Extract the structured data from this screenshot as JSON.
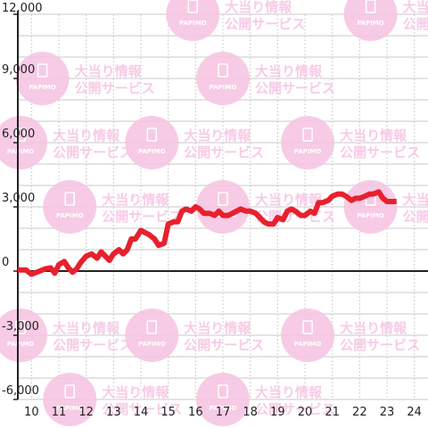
{
  "watermark": {
    "logo_text": "PAPIMO",
    "line1": "大当り情報",
    "line2": "公開サービス",
    "color": "#f7c6e3"
  },
  "chart_data": {
    "type": "line",
    "title": "",
    "xlabel": "",
    "ylabel": "",
    "xlim": [
      9.5,
      24.5
    ],
    "ylim": [
      -6000,
      12000
    ],
    "x_ticks": [
      10,
      11,
      12,
      13,
      14,
      15,
      16,
      17,
      18,
      19,
      20,
      21,
      22,
      23,
      24
    ],
    "x_tick_labels": [
      "10",
      "11",
      "12",
      "13",
      "14",
      "15",
      "16",
      "17",
      "18",
      "19",
      "20",
      "21",
      "22",
      "23",
      "24"
    ],
    "y_ticks": [
      -6000,
      -3000,
      0,
      3000,
      6000,
      9000,
      12000
    ],
    "y_tick_labels": [
      "-6,000",
      "-3,000",
      "0",
      "3,000",
      "6,000",
      "9,000",
      "12,000"
    ],
    "grid": true,
    "line_color": "#e8202e",
    "series": [
      {
        "x": [
          9.5,
          9.8,
          10.0,
          10.3,
          10.5,
          10.7,
          10.85,
          11.0,
          11.2,
          11.35,
          11.5,
          11.65,
          11.8,
          12.0,
          12.2,
          12.4,
          12.55,
          12.7,
          12.85,
          13.0,
          13.2,
          13.35,
          13.5,
          13.65,
          13.8,
          14.0,
          14.15,
          14.3,
          14.5,
          14.65,
          14.85,
          15.0,
          15.2,
          15.35,
          15.5,
          15.65,
          15.85,
          16.0,
          16.15,
          16.3,
          16.5,
          16.7,
          16.85,
          17.0,
          17.2,
          17.35,
          17.5,
          17.65,
          17.85,
          18.0,
          18.2,
          18.35,
          18.5,
          18.65,
          18.85,
          19.0,
          19.2,
          19.35,
          19.5,
          19.65,
          19.85,
          20.0,
          20.2,
          20.35,
          20.5,
          20.65,
          20.85,
          21.0,
          21.2,
          21.35,
          21.5,
          21.7,
          21.85,
          22.0,
          22.2,
          22.35,
          22.5,
          22.7,
          22.85,
          23.0,
          23.35
        ],
        "y": [
          50,
          50,
          -150,
          0,
          100,
          150,
          -100,
          300,
          450,
          150,
          -50,
          100,
          400,
          700,
          800,
          600,
          900,
          700,
          500,
          800,
          1000,
          800,
          1000,
          1500,
          1500,
          1900,
          1800,
          1700,
          1500,
          1200,
          1300,
          2200,
          2300,
          2300,
          2800,
          2900,
          2800,
          3000,
          2900,
          2700,
          2700,
          2600,
          2800,
          2600,
          2600,
          2700,
          2800,
          2900,
          2800,
          2800,
          2700,
          2500,
          2300,
          2200,
          2200,
          2500,
          2400,
          2800,
          2900,
          2800,
          2600,
          2600,
          2800,
          2700,
          3200,
          3200,
          3300,
          3500,
          3600,
          3600,
          3500,
          3300,
          3400,
          3400,
          3500,
          3600,
          3600,
          3700,
          3400,
          3250,
          3250
        ]
      }
    ]
  }
}
